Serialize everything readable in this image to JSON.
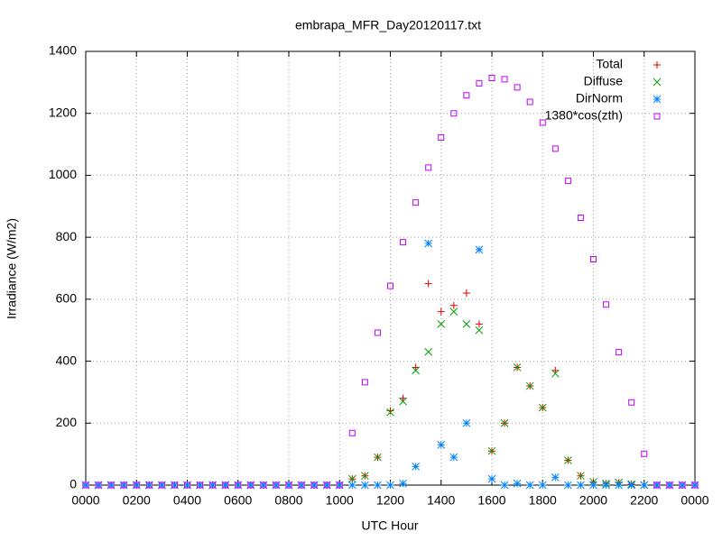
{
  "chart_data": {
    "type": "scatter",
    "title": "embrapa_MFR_Day20120117.txt",
    "x_label": "UTC Hour",
    "y_label": "Irradiance (W/m2)",
    "x": [
      0,
      0.5,
      1,
      1.5,
      2,
      2.5,
      3,
      3.5,
      4,
      4.5,
      5,
      5.5,
      6,
      6.5,
      7,
      7.5,
      8,
      8.5,
      9,
      9.5,
      10,
      10.5,
      11,
      11.5,
      12,
      12.5,
      13,
      13.5,
      14,
      14.5,
      15,
      15.5,
      16,
      16.5,
      17,
      17.5,
      18,
      18.5,
      19,
      19.5,
      20,
      20.5,
      21,
      21.5,
      22,
      22.5,
      23,
      23.5,
      24
    ],
    "series": [
      {
        "name": "Total",
        "color": "#e00000",
        "marker": "plus",
        "values": [
          0,
          0,
          0,
          0,
          0,
          0,
          0,
          0,
          0,
          0,
          0,
          0,
          0,
          0,
          0,
          0,
          0,
          0,
          0,
          0,
          0,
          20,
          30,
          90,
          240,
          280,
          380,
          650,
          560,
          580,
          620,
          520,
          110,
          200,
          380,
          320,
          250,
          370,
          80,
          30,
          10,
          5,
          8,
          3,
          0,
          0,
          0,
          0,
          0
        ]
      },
      {
        "name": "Diffuse",
        "color": "#00a000",
        "marker": "cross",
        "values": [
          0,
          0,
          0,
          0,
          0,
          0,
          0,
          0,
          0,
          0,
          0,
          0,
          0,
          0,
          0,
          0,
          0,
          0,
          0,
          0,
          0,
          20,
          30,
          90,
          235,
          270,
          370,
          430,
          520,
          560,
          520,
          500,
          110,
          200,
          380,
          320,
          250,
          360,
          80,
          30,
          10,
          5,
          8,
          3,
          0,
          0,
          0,
          0,
          0
        ]
      },
      {
        "name": "DirNorm",
        "color": "#0080ff",
        "marker": "star",
        "values": [
          0,
          0,
          0,
          0,
          0,
          0,
          0,
          0,
          0,
          0,
          0,
          0,
          0,
          0,
          0,
          0,
          0,
          0,
          0,
          0,
          0,
          0,
          0,
          0,
          0,
          5,
          60,
          780,
          130,
          90,
          200,
          760,
          20,
          0,
          5,
          0,
          0,
          25,
          0,
          0,
          0,
          0,
          0,
          0,
          0,
          0,
          0,
          0,
          0
        ]
      },
      {
        "name": "1380*cos(zth)",
        "color": "#c000ff",
        "marker": "square",
        "values": [
          0,
          0,
          0,
          0,
          0,
          0,
          0,
          0,
          0,
          0,
          0,
          0,
          0,
          0,
          0,
          0,
          0,
          0,
          0,
          0,
          0,
          168,
          332,
          492,
          643,
          784,
          912,
          1025,
          1122,
          1200,
          1258,
          1297,
          1314,
          1310,
          1284,
          1237,
          1170,
          1086,
          982,
          863,
          729,
          583,
          429,
          267,
          101,
          0,
          0,
          0,
          0
        ]
      }
    ],
    "xlim": [
      0,
      24
    ],
    "xticks": [
      {
        "value": 0,
        "label": "0000"
      },
      {
        "value": 2,
        "label": "0200"
      },
      {
        "value": 4,
        "label": "0400"
      },
      {
        "value": 6,
        "label": "0600"
      },
      {
        "value": 8,
        "label": "0800"
      },
      {
        "value": 10,
        "label": "1000"
      },
      {
        "value": 12,
        "label": "1200"
      },
      {
        "value": 14,
        "label": "1400"
      },
      {
        "value": 16,
        "label": "1600"
      },
      {
        "value": 18,
        "label": "1800"
      },
      {
        "value": 20,
        "label": "2000"
      },
      {
        "value": 22,
        "label": "2200"
      },
      {
        "value": 24,
        "label": "0000"
      }
    ],
    "ylim": [
      0,
      1400
    ],
    "yticks": [
      0,
      200,
      400,
      600,
      800,
      1000,
      1200,
      1400
    ],
    "grid": true,
    "legend": "top-right"
  }
}
